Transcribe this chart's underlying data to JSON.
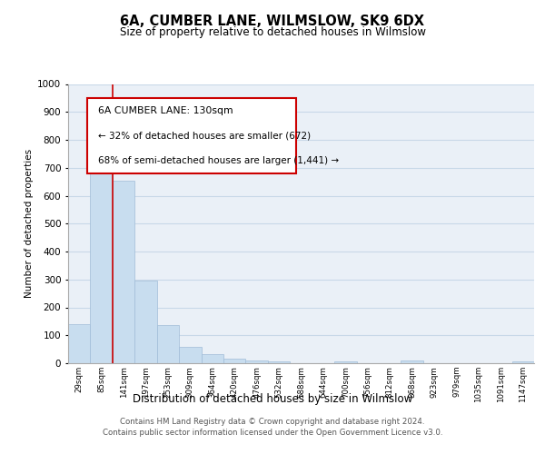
{
  "title": "6A, CUMBER LANE, WILMSLOW, SK9 6DX",
  "subtitle": "Size of property relative to detached houses in Wilmslow",
  "xlabel": "Distribution of detached houses by size in Wilmslow",
  "ylabel": "Number of detached properties",
  "bar_labels": [
    "29sqm",
    "85sqm",
    "141sqm",
    "197sqm",
    "253sqm",
    "309sqm",
    "364sqm",
    "420sqm",
    "476sqm",
    "532sqm",
    "588sqm",
    "644sqm",
    "700sqm",
    "756sqm",
    "812sqm",
    "868sqm",
    "923sqm",
    "979sqm",
    "1035sqm",
    "1091sqm",
    "1147sqm"
  ],
  "bar_values": [
    140,
    775,
    655,
    295,
    135,
    57,
    32,
    17,
    10,
    5,
    0,
    0,
    5,
    0,
    0,
    10,
    0,
    0,
    0,
    0,
    5
  ],
  "bar_color": "#c8ddef",
  "bar_edge_color": "#a0bcd8",
  "grid_color": "#c8d8e8",
  "background_color": "#eaf0f7",
  "annotation_box_text_line1": "6A CUMBER LANE: 130sqm",
  "annotation_box_text_line2": "← 32% of detached houses are smaller (672)",
  "annotation_box_text_line3": "68% of semi-detached houses are larger (1,441) →",
  "red_line_x": 1.5,
  "ylim": [
    0,
    1000
  ],
  "yticks": [
    0,
    100,
    200,
    300,
    400,
    500,
    600,
    700,
    800,
    900,
    1000
  ],
  "footer_line1": "Contains HM Land Registry data © Crown copyright and database right 2024.",
  "footer_line2": "Contains public sector information licensed under the Open Government Licence v3.0."
}
